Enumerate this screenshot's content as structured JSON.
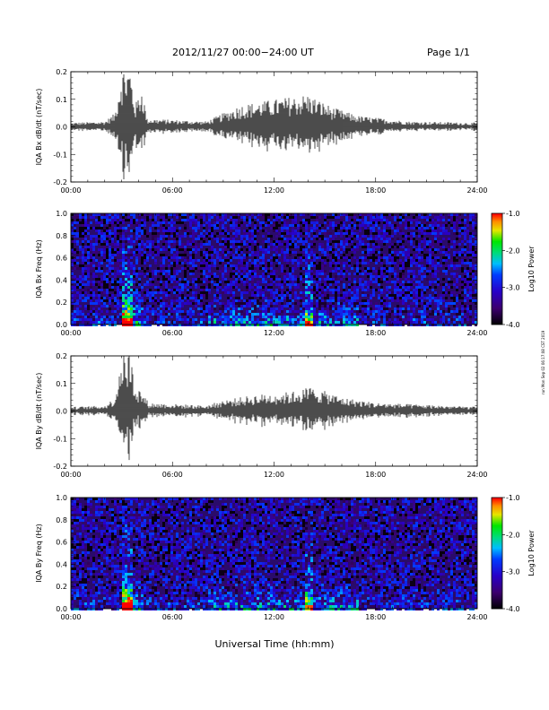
{
  "header": {
    "title": "2012/11/27  00:00−24:00 UT",
    "page": "Page 1/1"
  },
  "xaxis_title": "Universal Time (hh:mm)",
  "side_note": "run Mon Sep 02 06:17:08 CST 2019",
  "colors": {
    "line": "#000000",
    "frame": "#000000"
  },
  "chart_data": [
    {
      "type": "line",
      "ylabel": "IQA Bx dB/dt (nT/sec)",
      "x_ticks": [
        "00:00",
        "06:00",
        "12:00",
        "18:00",
        "24:00"
      ],
      "xlim": [
        0,
        24
      ],
      "ylim": [
        -0.2,
        0.2
      ],
      "y_ticks": [
        "-0.2",
        "-0.1",
        "0.0",
        "0.1",
        "0.2"
      ],
      "envelope": [
        {
          "t": 0.0,
          "a": 0.015
        },
        {
          "t": 2.0,
          "a": 0.02
        },
        {
          "t": 2.6,
          "a": 0.05
        },
        {
          "t": 3.0,
          "a": 0.22
        },
        {
          "t": 3.5,
          "a": 0.22
        },
        {
          "t": 3.8,
          "a": 0.08
        },
        {
          "t": 4.2,
          "a": 0.15
        },
        {
          "t": 4.5,
          "a": 0.03
        },
        {
          "t": 8.0,
          "a": 0.02
        },
        {
          "t": 9.0,
          "a": 0.05
        },
        {
          "t": 10.0,
          "a": 0.08
        },
        {
          "t": 12.0,
          "a": 0.1
        },
        {
          "t": 14.0,
          "a": 0.12
        },
        {
          "t": 15.5,
          "a": 0.07
        },
        {
          "t": 17.0,
          "a": 0.04
        },
        {
          "t": 20.0,
          "a": 0.02
        },
        {
          "t": 24.0,
          "a": 0.015
        }
      ]
    },
    {
      "type": "heatmap",
      "ylabel": "IQA Bx Freq (Hz)",
      "x_ticks": [
        "00:00",
        "06:00",
        "12:00",
        "18:00",
        "24:00"
      ],
      "xlim": [
        0,
        24
      ],
      "ylim": [
        0.0,
        1.0
      ],
      "y_ticks": [
        "0.0",
        "0.2",
        "0.4",
        "0.6",
        "0.8",
        "1.0"
      ],
      "colorbar": {
        "label": "Log10 Power",
        "ticks": [
          "-4.0",
          "-3.0",
          "-2.0",
          "-1.0"
        ],
        "range": [
          -4.0,
          -1.0
        ]
      }
    },
    {
      "type": "line",
      "ylabel": "IQA By dB/dt (nT/sec)",
      "x_ticks": [
        "00:00",
        "06:00",
        "12:00",
        "18:00",
        "24:00"
      ],
      "xlim": [
        0,
        24
      ],
      "ylim": [
        -0.2,
        0.2
      ],
      "y_ticks": [
        "-0.2",
        "-0.1",
        "0.0",
        "0.1",
        "0.2"
      ],
      "envelope": [
        {
          "t": 0.0,
          "a": 0.015
        },
        {
          "t": 2.0,
          "a": 0.02
        },
        {
          "t": 2.6,
          "a": 0.05
        },
        {
          "t": 3.0,
          "a": 0.22
        },
        {
          "t": 3.5,
          "a": 0.22
        },
        {
          "t": 3.8,
          "a": 0.1
        },
        {
          "t": 4.2,
          "a": 0.07
        },
        {
          "t": 4.6,
          "a": 0.03
        },
        {
          "t": 8.0,
          "a": 0.02
        },
        {
          "t": 9.0,
          "a": 0.04
        },
        {
          "t": 11.0,
          "a": 0.06
        },
        {
          "t": 13.0,
          "a": 0.07
        },
        {
          "t": 14.2,
          "a": 0.09
        },
        {
          "t": 16.0,
          "a": 0.05
        },
        {
          "t": 18.0,
          "a": 0.03
        },
        {
          "t": 24.0,
          "a": 0.015
        }
      ]
    },
    {
      "type": "heatmap",
      "ylabel": "IQA By Freq (Hz)",
      "x_ticks": [
        "00:00",
        "06:00",
        "12:00",
        "18:00",
        "24:00"
      ],
      "xlim": [
        0,
        24
      ],
      "ylim": [
        0.0,
        1.0
      ],
      "y_ticks": [
        "0.0",
        "0.2",
        "0.4",
        "0.6",
        "0.8",
        "1.0"
      ],
      "colorbar": {
        "label": "Log10 Power",
        "ticks": [
          "-4.0",
          "-3.0",
          "-2.0",
          "-1.0"
        ],
        "range": [
          -4.0,
          -1.0
        ]
      }
    }
  ]
}
